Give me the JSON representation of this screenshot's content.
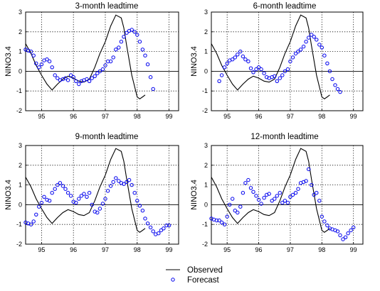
{
  "chart_data": {
    "type": "line",
    "y_axis_label": "NINO3.4",
    "x_ticks": [
      "95",
      "96",
      "97",
      "98",
      "99"
    ],
    "y_ticks": [
      "3",
      "2",
      "1",
      "0",
      "-1",
      "-2"
    ],
    "xlim": [
      1994.5,
      1999.3
    ],
    "ylim": [
      -2,
      3
    ],
    "grid": true,
    "legend": {
      "placement": "bottom-center",
      "items": [
        {
          "label": "Observed",
          "style": "black-line"
        },
        {
          "label": "Forecast",
          "style": "blue-circle"
        }
      ]
    },
    "observed": {
      "name": "Observed",
      "x": [
        1994.5,
        1994.67,
        1994.83,
        1995.0,
        1995.17,
        1995.33,
        1995.5,
        1995.67,
        1995.83,
        1996.0,
        1996.17,
        1996.33,
        1996.5,
        1996.67,
        1996.83,
        1997.0,
        1997.17,
        1997.33,
        1997.5,
        1997.58,
        1997.67,
        1997.83,
        1998.0,
        1998.08,
        1998.17,
        1998.25
      ],
      "y": [
        1.4,
        0.9,
        0.3,
        -0.2,
        -0.65,
        -0.95,
        -0.65,
        -0.4,
        -0.25,
        -0.35,
        -0.5,
        -0.55,
        -0.4,
        0.2,
        0.9,
        1.5,
        2.3,
        2.85,
        2.7,
        2.2,
        1.3,
        -0.2,
        -1.3,
        -1.4,
        -1.3,
        -1.2
      ]
    },
    "panels": [
      {
        "title": "3-month leadtime",
        "forecast": {
          "name": "Forecast",
          "x": [
            1994.5,
            1994.58,
            1994.67,
            1994.75,
            1994.83,
            1994.92,
            1995.0,
            1995.08,
            1995.17,
            1995.25,
            1995.33,
            1995.42,
            1995.5,
            1995.58,
            1995.67,
            1995.75,
            1995.83,
            1995.92,
            1996.0,
            1996.08,
            1996.17,
            1996.25,
            1996.33,
            1996.42,
            1996.5,
            1996.58,
            1996.67,
            1996.75,
            1996.83,
            1996.92,
            1997.0,
            1997.08,
            1997.17,
            1997.25,
            1997.33,
            1997.42,
            1997.5,
            1997.58,
            1997.67,
            1997.75,
            1997.83,
            1997.92,
            1998.0,
            1998.08,
            1998.17,
            1998.25,
            1998.33,
            1998.42,
            1998.5
          ],
          "y": [
            1.1,
            1.05,
            1.0,
            0.8,
            0.4,
            0.2,
            0.35,
            0.55,
            0.6,
            0.5,
            0.2,
            -0.2,
            -0.35,
            -0.45,
            -0.4,
            -0.35,
            -0.45,
            -0.2,
            -0.3,
            -0.5,
            -0.65,
            -0.5,
            -0.45,
            -0.4,
            -0.5,
            -0.35,
            -0.25,
            -0.1,
            0.0,
            0.1,
            0.3,
            0.5,
            0.5,
            0.7,
            1.1,
            1.2,
            1.5,
            1.75,
            1.95,
            2.05,
            2.1,
            2.0,
            1.85,
            1.5,
            1.1,
            0.8,
            0.35,
            -0.3,
            -0.9
          ]
        }
      },
      {
        "title": "6-month leadtime",
        "forecast": {
          "name": "Forecast",
          "x": [
            1994.75,
            1994.83,
            1994.92,
            1995.0,
            1995.08,
            1995.17,
            1995.25,
            1995.33,
            1995.42,
            1995.5,
            1995.58,
            1995.67,
            1995.75,
            1995.83,
            1995.92,
            1996.0,
            1996.08,
            1996.17,
            1996.25,
            1996.33,
            1996.42,
            1996.5,
            1996.58,
            1996.67,
            1996.75,
            1996.83,
            1996.92,
            1997.0,
            1997.08,
            1997.17,
            1997.25,
            1997.33,
            1997.42,
            1997.5,
            1997.58,
            1997.67,
            1997.75,
            1997.83,
            1997.92,
            1998.0,
            1998.08,
            1998.17,
            1998.25,
            1998.33,
            1998.42,
            1998.5,
            1998.58
          ],
          "y": [
            -0.5,
            -0.2,
            0.2,
            0.4,
            0.55,
            0.6,
            0.7,
            0.85,
            1.0,
            0.75,
            0.6,
            0.5,
            0.15,
            -0.05,
            0.1,
            0.2,
            0.1,
            -0.1,
            -0.3,
            -0.35,
            -0.3,
            -0.25,
            -0.5,
            -0.35,
            -0.2,
            0.0,
            0.1,
            0.5,
            0.7,
            0.9,
            1.0,
            1.1,
            1.25,
            1.5,
            1.7,
            1.85,
            1.75,
            1.6,
            1.35,
            1.2,
            0.8,
            0.4,
            0.0,
            -0.4,
            -0.7,
            -0.9,
            -1.05
          ]
        }
      },
      {
        "title": "9-month leadtime",
        "forecast": {
          "name": "Forecast",
          "x": [
            1994.5,
            1994.58,
            1994.67,
            1994.75,
            1994.83,
            1994.92,
            1995.0,
            1995.08,
            1995.17,
            1995.25,
            1995.33,
            1995.42,
            1995.5,
            1995.58,
            1995.67,
            1995.75,
            1995.83,
            1995.92,
            1996.0,
            1996.08,
            1996.17,
            1996.25,
            1996.33,
            1996.42,
            1996.5,
            1996.58,
            1996.67,
            1996.75,
            1996.83,
            1996.92,
            1997.0,
            1997.08,
            1997.17,
            1997.25,
            1997.33,
            1997.42,
            1997.5,
            1997.58,
            1997.67,
            1997.75,
            1997.83,
            1997.92,
            1998.0,
            1998.08,
            1998.17,
            1998.25,
            1998.33,
            1998.42,
            1998.5,
            1998.58,
            1998.67,
            1998.75,
            1998.83,
            1998.92,
            1999.0
          ],
          "y": [
            -0.9,
            -0.95,
            -1.0,
            -0.85,
            -0.5,
            -0.1,
            0.1,
            0.4,
            0.25,
            0.2,
            0.6,
            0.8,
            1.0,
            1.1,
            0.95,
            0.8,
            0.6,
            0.45,
            0.15,
            0.1,
            0.3,
            0.45,
            0.55,
            0.4,
            0.6,
            0.0,
            -0.35,
            -0.4,
            -0.2,
            0.05,
            0.3,
            0.7,
            0.95,
            1.15,
            1.35,
            1.2,
            1.1,
            1.05,
            1.15,
            1.25,
            1.0,
            0.6,
            0.2,
            -0.05,
            -0.3,
            -0.7,
            -0.95,
            -1.15,
            -1.35,
            -1.5,
            -1.45,
            -1.3,
            -1.2,
            -1.05,
            -1.05
          ]
        }
      },
      {
        "title": "12-month leadtime",
        "forecast": {
          "name": "Forecast",
          "x": [
            1994.5,
            1994.58,
            1994.67,
            1994.75,
            1994.83,
            1994.92,
            1995.0,
            1995.08,
            1995.17,
            1995.25,
            1995.33,
            1995.42,
            1995.5,
            1995.58,
            1995.67,
            1995.75,
            1995.83,
            1995.92,
            1996.0,
            1996.08,
            1996.17,
            1996.25,
            1996.33,
            1996.42,
            1996.5,
            1996.58,
            1996.67,
            1996.75,
            1996.83,
            1996.92,
            1997.0,
            1997.08,
            1997.17,
            1997.25,
            1997.33,
            1997.42,
            1997.5,
            1997.58,
            1997.67,
            1997.75,
            1997.83,
            1997.92,
            1998.0,
            1998.08,
            1998.17,
            1998.25,
            1998.33,
            1998.42,
            1998.5,
            1998.58,
            1998.67,
            1998.75,
            1998.83,
            1998.92,
            1999.0
          ],
          "y": [
            -0.7,
            -0.75,
            -0.8,
            -0.8,
            -0.9,
            -1.0,
            -0.6,
            0.0,
            0.3,
            -0.3,
            -0.4,
            -0.1,
            0.6,
            1.1,
            1.25,
            0.85,
            0.65,
            0.45,
            0.25,
            0.05,
            0.35,
            0.5,
            0.55,
            0.2,
            0.3,
            0.45,
            0.6,
            0.1,
            0.2,
            0.1,
            0.4,
            0.5,
            0.6,
            0.8,
            1.1,
            1.15,
            1.2,
            1.8,
            1.0,
            0.5,
            0.6,
            0.2,
            -0.6,
            -0.85,
            -1.05,
            -1.2,
            -1.25,
            -1.3,
            -1.35,
            -1.55,
            -1.75,
            -1.65,
            -1.45,
            -1.3,
            -1.15
          ]
        }
      }
    ]
  }
}
